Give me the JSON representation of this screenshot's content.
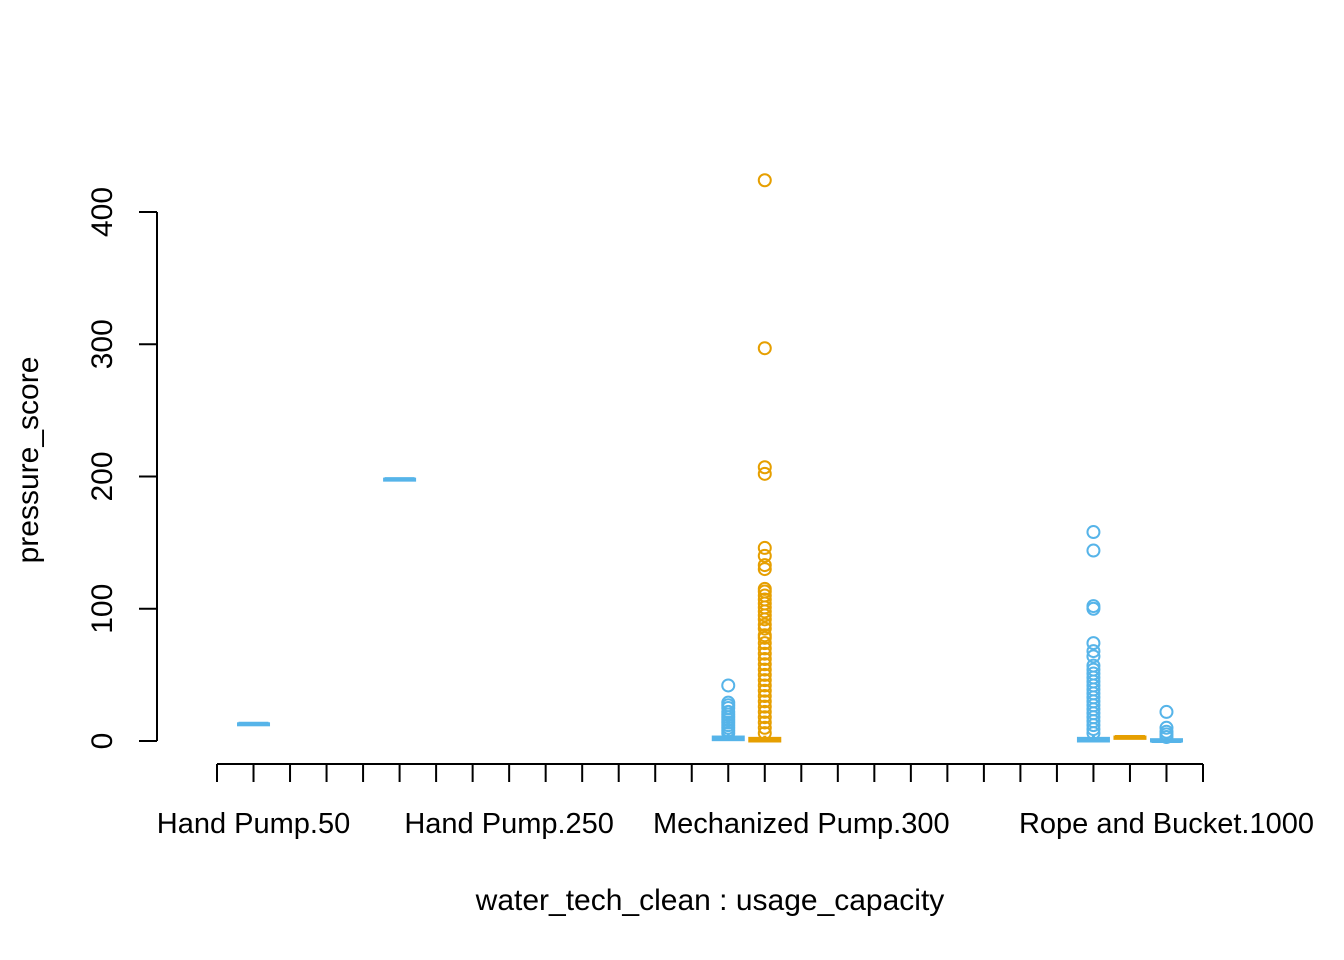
{
  "chart_data": {
    "type": "box",
    "title": "",
    "xlabel": "water_tech_clean : usage_capacity",
    "ylabel": "pressure_score",
    "ylim": [
      0,
      400
    ],
    "y_ticks": [
      0,
      100,
      200,
      300,
      400
    ],
    "tick_count_x": 28,
    "x_tick_labels": [
      {
        "slot": 1,
        "label": "Hand Pump.50"
      },
      {
        "slot": 8,
        "label": "Hand Pump.250"
      },
      {
        "slot": 16,
        "label": "Mechanized Pump.300"
      },
      {
        "slot": 26,
        "label": "Rope and Bucket.1000"
      }
    ],
    "colors": {
      "blue": "#56B4E9",
      "orange": "#E69F00"
    },
    "boxes": [
      {
        "slot": 1,
        "color": "blue",
        "median": 13,
        "q1": 13,
        "q3": 13,
        "whisker_low": 13,
        "whisker_high": 13,
        "outliers": []
      },
      {
        "slot": 5,
        "color": "blue",
        "median": 198,
        "q1": 198,
        "q3": 198,
        "whisker_low": 198,
        "whisker_high": 198,
        "outliers": []
      },
      {
        "slot": 14,
        "color": "blue",
        "median": 2,
        "q1": 1,
        "q3": 3,
        "whisker_low": 0,
        "whisker_high": 5,
        "outliers": [
          6,
          8,
          10,
          12,
          14,
          16,
          18,
          20,
          22,
          25,
          27,
          29,
          42
        ]
      },
      {
        "slot": 15,
        "color": "orange",
        "median": 1,
        "q1": 0,
        "q3": 2,
        "whisker_low": 0,
        "whisker_high": 4,
        "outliers": [
          6,
          10,
          14,
          18,
          22,
          26,
          30,
          34,
          38,
          42,
          46,
          50,
          54,
          58,
          62,
          66,
          70,
          74,
          78,
          80,
          85,
          88,
          92,
          95,
          98,
          101,
          104,
          107,
          110,
          113,
          115,
          130,
          133,
          140,
          146,
          202,
          207,
          297,
          424
        ]
      },
      {
        "slot": 24,
        "color": "blue",
        "median": 1,
        "q1": 0,
        "q3": 2,
        "whisker_low": 0,
        "whisker_high": 4,
        "outliers": [
          6,
          9,
          12,
          15,
          18,
          21,
          24,
          27,
          30,
          33,
          36,
          39,
          42,
          45,
          48,
          51,
          54,
          57,
          64,
          68,
          74,
          100,
          102,
          144,
          158
        ]
      },
      {
        "slot": 25,
        "color": "orange",
        "median": 3,
        "q1": 2,
        "q3": 3,
        "whisker_low": 2,
        "whisker_high": 3,
        "outliers": []
      },
      {
        "slot": 26,
        "color": "blue",
        "median": 0,
        "q1": 0,
        "q3": 1,
        "whisker_low": 0,
        "whisker_high": 1,
        "outliers": [
          3,
          5,
          7,
          10,
          22
        ]
      }
    ]
  }
}
